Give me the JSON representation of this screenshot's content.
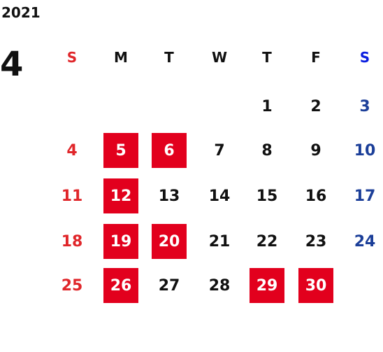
{
  "calendar": {
    "year": "2021",
    "month": "4",
    "weekdays": [
      "S",
      "M",
      "T",
      "W",
      "T",
      "F",
      "S"
    ],
    "weeks": [
      [
        null,
        null,
        null,
        null,
        {
          "day": "1"
        },
        {
          "day": "2"
        },
        {
          "day": "3"
        }
      ],
      [
        {
          "day": "4"
        },
        {
          "day": "5",
          "holiday": true
        },
        {
          "day": "6",
          "holiday": true
        },
        {
          "day": "7"
        },
        {
          "day": "8"
        },
        {
          "day": "9"
        },
        {
          "day": "10"
        }
      ],
      [
        {
          "day": "11"
        },
        {
          "day": "12",
          "holiday": true
        },
        {
          "day": "13"
        },
        {
          "day": "14"
        },
        {
          "day": "15"
        },
        {
          "day": "16"
        },
        {
          "day": "17"
        }
      ],
      [
        {
          "day": "18"
        },
        {
          "day": "19",
          "holiday": true
        },
        {
          "day": "20",
          "holiday": true
        },
        {
          "day": "21"
        },
        {
          "day": "22"
        },
        {
          "day": "23"
        },
        {
          "day": "24"
        }
      ],
      [
        {
          "day": "25"
        },
        {
          "day": "26",
          "holiday": true
        },
        {
          "day": "27"
        },
        {
          "day": "28"
        },
        {
          "day": "29",
          "holiday": true
        },
        {
          "day": "30",
          "holiday": true
        },
        null
      ]
    ]
  }
}
